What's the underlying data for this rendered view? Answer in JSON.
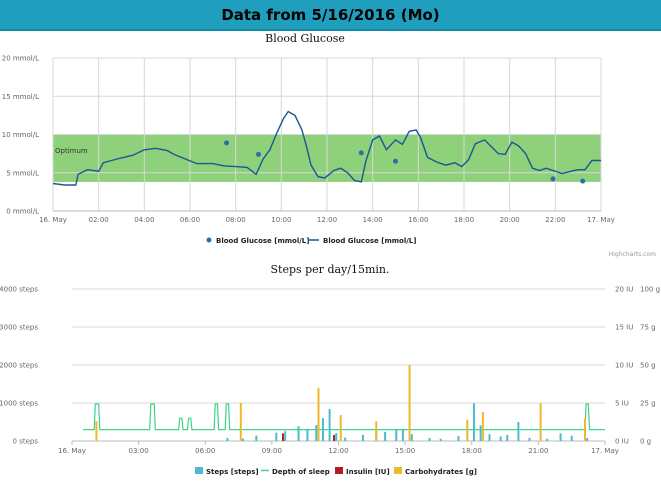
{
  "header": {
    "title": "Data from 5/16/2016 (Mo)"
  },
  "credit": "Highcharts.com",
  "chart_data": [
    {
      "type": "line",
      "title": "Blood Glucose",
      "band": {
        "from": 3.8,
        "to": 10.0,
        "label": "Optimum",
        "color": "#8fd07a"
      },
      "ylim": [
        0,
        20
      ],
      "yticks": [
        {
          "v": 0,
          "label": "0 mmol/L"
        },
        {
          "v": 5,
          "label": "5 mmol/L"
        },
        {
          "v": 10,
          "label": "10 mmol/L"
        },
        {
          "v": 15,
          "label": "15 mmol/L"
        },
        {
          "v": 20,
          "label": "20 mmol/L"
        }
      ],
      "xlim": [
        0,
        24
      ],
      "xticks": [
        {
          "v": 0,
          "label": "16. May"
        },
        {
          "v": 2,
          "label": "02:00"
        },
        {
          "v": 4,
          "label": "04:00"
        },
        {
          "v": 6,
          "label": "06:00"
        },
        {
          "v": 8,
          "label": "08:00"
        },
        {
          "v": 10,
          "label": "10:00"
        },
        {
          "v": 12,
          "label": "12:00"
        },
        {
          "v": 14,
          "label": "14:00"
        },
        {
          "v": 16,
          "label": "16:00"
        },
        {
          "v": 18,
          "label": "18:00"
        },
        {
          "v": 20,
          "label": "20:00"
        },
        {
          "v": 22,
          "label": "22:00"
        },
        {
          "v": 24,
          "label": "17. May"
        }
      ],
      "series": [
        {
          "name": "Blood Glucose [mmol/L]",
          "kind": "scatter",
          "color": "#2a6fa8",
          "points": [
            [
              7.6,
              8.9
            ],
            [
              9.0,
              7.4
            ],
            [
              13.5,
              7.6
            ],
            [
              15.0,
              6.5
            ],
            [
              21.9,
              4.2
            ],
            [
              23.2,
              3.9
            ]
          ]
        },
        {
          "name": "Blood Glucose [mmol/L]",
          "kind": "line",
          "color": "#1a5796",
          "points": [
            [
              0.0,
              3.6
            ],
            [
              0.5,
              3.4
            ],
            [
              1.0,
              3.4
            ],
            [
              1.1,
              4.8
            ],
            [
              1.5,
              5.4
            ],
            [
              2.0,
              5.2
            ],
            [
              2.2,
              6.3
            ],
            [
              2.8,
              6.8
            ],
            [
              3.1,
              7.0
            ],
            [
              3.5,
              7.3
            ],
            [
              4.0,
              8.0
            ],
            [
              4.5,
              8.2
            ],
            [
              5.0,
              7.9
            ],
            [
              5.3,
              7.4
            ],
            [
              5.8,
              6.8
            ],
            [
              6.3,
              6.2
            ],
            [
              7.0,
              6.2
            ],
            [
              7.5,
              5.9
            ],
            [
              8.0,
              5.8
            ],
            [
              8.5,
              5.7
            ],
            [
              8.9,
              4.8
            ],
            [
              9.2,
              6.8
            ],
            [
              9.5,
              8.0
            ],
            [
              9.8,
              10.2
            ],
            [
              10.1,
              12.1
            ],
            [
              10.3,
              13.0
            ],
            [
              10.6,
              12.5
            ],
            [
              10.9,
              10.6
            ],
            [
              11.1,
              8.5
            ],
            [
              11.3,
              6.0
            ],
            [
              11.6,
              4.5
            ],
            [
              11.9,
              4.3
            ],
            [
              12.3,
              5.3
            ],
            [
              12.6,
              5.6
            ],
            [
              12.9,
              5.0
            ],
            [
              13.2,
              4.0
            ],
            [
              13.5,
              3.8
            ],
            [
              13.7,
              6.5
            ],
            [
              14.0,
              9.3
            ],
            [
              14.3,
              9.8
            ],
            [
              14.6,
              8.0
            ],
            [
              15.0,
              9.3
            ],
            [
              15.3,
              8.7
            ],
            [
              15.6,
              10.4
            ],
            [
              15.9,
              10.6
            ],
            [
              16.1,
              9.6
            ],
            [
              16.4,
              7.0
            ],
            [
              16.8,
              6.4
            ],
            [
              17.2,
              6.0
            ],
            [
              17.6,
              6.3
            ],
            [
              17.9,
              5.8
            ],
            [
              18.2,
              6.7
            ],
            [
              18.5,
              8.8
            ],
            [
              18.9,
              9.3
            ],
            [
              19.2,
              8.4
            ],
            [
              19.5,
              7.5
            ],
            [
              19.8,
              7.4
            ],
            [
              20.1,
              9.0
            ],
            [
              20.4,
              8.5
            ],
            [
              20.7,
              7.5
            ],
            [
              21.0,
              5.6
            ],
            [
              21.3,
              5.3
            ],
            [
              21.6,
              5.6
            ],
            [
              21.9,
              5.3
            ],
            [
              22.3,
              4.9
            ],
            [
              22.7,
              5.2
            ],
            [
              23.0,
              5.4
            ],
            [
              23.3,
              5.4
            ],
            [
              23.6,
              6.6
            ],
            [
              24.0,
              6.6
            ]
          ]
        }
      ]
    },
    {
      "type": "bar",
      "title": "Steps per day/15min.",
      "xlim": [
        0,
        24
      ],
      "xticks": [
        {
          "v": 0,
          "label": "16. May"
        },
        {
          "v": 3,
          "label": "03:00"
        },
        {
          "v": 6,
          "label": "06:00"
        },
        {
          "v": 9,
          "label": "09:00"
        },
        {
          "v": 12,
          "label": "12:00"
        },
        {
          "v": 15,
          "label": "15:00"
        },
        {
          "v": 18,
          "label": "18:00"
        },
        {
          "v": 21,
          "label": "21:00"
        },
        {
          "v": 24,
          "label": "17. May"
        }
      ],
      "yleft": {
        "ylim": [
          0,
          4000
        ],
        "ticks": [
          {
            "v": 0,
            "label": "0 steps"
          },
          {
            "v": 1000,
            "label": "1000 steps"
          },
          {
            "v": 2000,
            "label": "2000 steps"
          },
          {
            "v": 3000,
            "label": "3000 steps"
          },
          {
            "v": 4000,
            "label": "4000 steps"
          }
        ]
      },
      "yright1": {
        "ylim": [
          0,
          20
        ],
        "ticks": [
          {
            "v": 0,
            "label": "0 IU"
          },
          {
            "v": 5,
            "label": "5 IU"
          },
          {
            "v": 10,
            "label": "10 IU"
          },
          {
            "v": 15,
            "label": "15 IU"
          },
          {
            "v": 20,
            "label": "20 IU"
          }
        ]
      },
      "yright2": {
        "ylim": [
          0,
          100
        ],
        "ticks": [
          {
            "v": 0,
            "label": "0 g"
          },
          {
            "v": 25,
            "label": "25 g"
          },
          {
            "v": 50,
            "label": "50 g"
          },
          {
            "v": 75,
            "label": "75 g"
          },
          {
            "v": 100,
            "label": "100 g"
          }
        ]
      },
      "series": [
        {
          "name": "Steps [steps]",
          "kind": "bar",
          "color": "#4bbccd",
          "axis": "left",
          "points": [
            [
              7.0,
              80
            ],
            [
              7.7,
              60
            ],
            [
              8.3,
              140
            ],
            [
              9.2,
              220
            ],
            [
              9.6,
              260
            ],
            [
              10.2,
              390
            ],
            [
              10.6,
              300
            ],
            [
              11.0,
              420
            ],
            [
              11.3,
              600
            ],
            [
              11.6,
              840
            ],
            [
              11.9,
              210
            ],
            [
              12.3,
              90
            ],
            [
              13.1,
              160
            ],
            [
              13.7,
              270
            ],
            [
              14.1,
              240
            ],
            [
              14.6,
              300
            ],
            [
              14.9,
              320
            ],
            [
              15.3,
              180
            ],
            [
              16.1,
              80
            ],
            [
              16.6,
              60
            ],
            [
              17.4,
              130
            ],
            [
              17.8,
              60
            ],
            [
              18.1,
              990
            ],
            [
              18.4,
              410
            ],
            [
              18.8,
              180
            ],
            [
              19.3,
              120
            ],
            [
              19.6,
              160
            ],
            [
              20.1,
              500
            ],
            [
              20.6,
              80
            ],
            [
              21.4,
              60
            ],
            [
              22.0,
              200
            ],
            [
              22.5,
              140
            ],
            [
              23.2,
              80
            ]
          ]
        },
        {
          "name": "Depth of sleep",
          "kind": "line",
          "color": "#3fd48a",
          "axis": "left",
          "points": [
            [
              0.5,
              300
            ],
            [
              1.0,
              300
            ],
            [
              1.05,
              970
            ],
            [
              1.2,
              970
            ],
            [
              1.25,
              300
            ],
            [
              3.5,
              300
            ],
            [
              3.55,
              970
            ],
            [
              3.7,
              970
            ],
            [
              3.75,
              300
            ],
            [
              4.8,
              300
            ],
            [
              4.85,
              600
            ],
            [
              4.95,
              600
            ],
            [
              5.0,
              300
            ],
            [
              5.2,
              300
            ],
            [
              5.25,
              600
            ],
            [
              5.35,
              600
            ],
            [
              5.4,
              300
            ],
            [
              6.4,
              300
            ],
            [
              6.45,
              970
            ],
            [
              6.55,
              970
            ],
            [
              6.6,
              300
            ],
            [
              6.9,
              300
            ],
            [
              6.95,
              970
            ],
            [
              7.05,
              970
            ],
            [
              7.1,
              300
            ],
            [
              7.5,
              300
            ],
            [
              23.1,
              300
            ],
            [
              23.15,
              970
            ],
            [
              23.25,
              970
            ],
            [
              23.3,
              300
            ],
            [
              24.0,
              300
            ]
          ]
        },
        {
          "name": "Insulin [IU]",
          "kind": "bar",
          "color": "#b01e22",
          "axis": "right1",
          "points": [
            [
              9.5,
              1.0
            ],
            [
              11.8,
              0.8
            ]
          ]
        },
        {
          "name": "Carbohydrates [g]",
          "kind": "bar",
          "color": "#f0b82a",
          "axis": "right2",
          "points": [
            [
              1.1,
              13
            ],
            [
              7.6,
              25
            ],
            [
              11.1,
              35
            ],
            [
              12.1,
              17
            ],
            [
              13.7,
              13
            ],
            [
              15.2,
              50
            ],
            [
              17.8,
              14
            ],
            [
              18.5,
              19
            ],
            [
              21.1,
              25
            ],
            [
              23.1,
              15
            ]
          ]
        }
      ]
    }
  ]
}
